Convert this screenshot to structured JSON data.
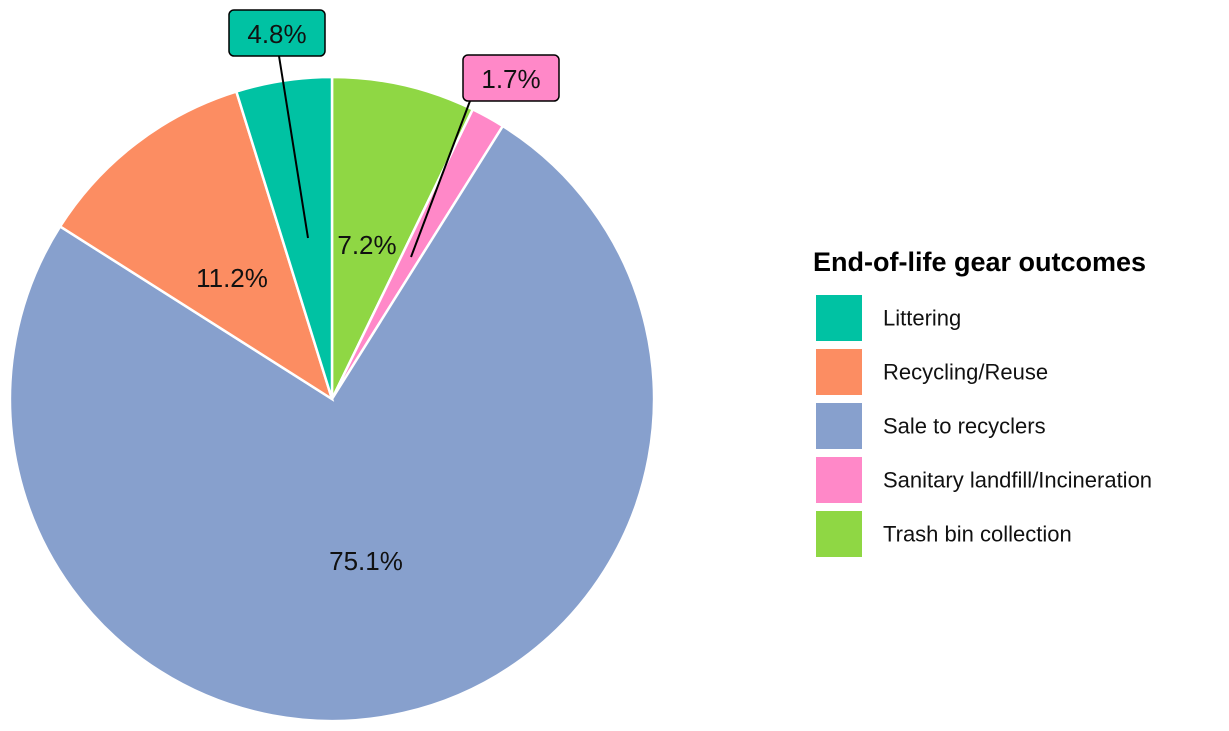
{
  "chart_data": {
    "type": "pie",
    "title": "",
    "legend": {
      "title": "End-of-life gear outcomes",
      "position": "right"
    },
    "slices": [
      {
        "name": "Trash bin collection",
        "value": 7.2,
        "label": "7.2%",
        "color": "#8fd744",
        "callout": false
      },
      {
        "name": "Sanitary landfill/Incineration",
        "value": 1.7,
        "label": "1.7%",
        "color": "#ff88c8",
        "callout": true
      },
      {
        "name": "Sale to recyclers",
        "value": 75.1,
        "label": "75.1%",
        "color": "#87a0cd",
        "callout": false
      },
      {
        "name": "Recycling/Reuse",
        "value": 11.2,
        "label": "11.2%",
        "color": "#fc8d62",
        "callout": false
      },
      {
        "name": "Littering",
        "value": 4.8,
        "label": "4.8%",
        "color": "#00c2a3",
        "callout": true
      }
    ],
    "legend_order": [
      "Littering",
      "Recycling/Reuse",
      "Sale to recyclers",
      "Sanitary landfill/Incineration",
      "Trash bin collection"
    ]
  }
}
